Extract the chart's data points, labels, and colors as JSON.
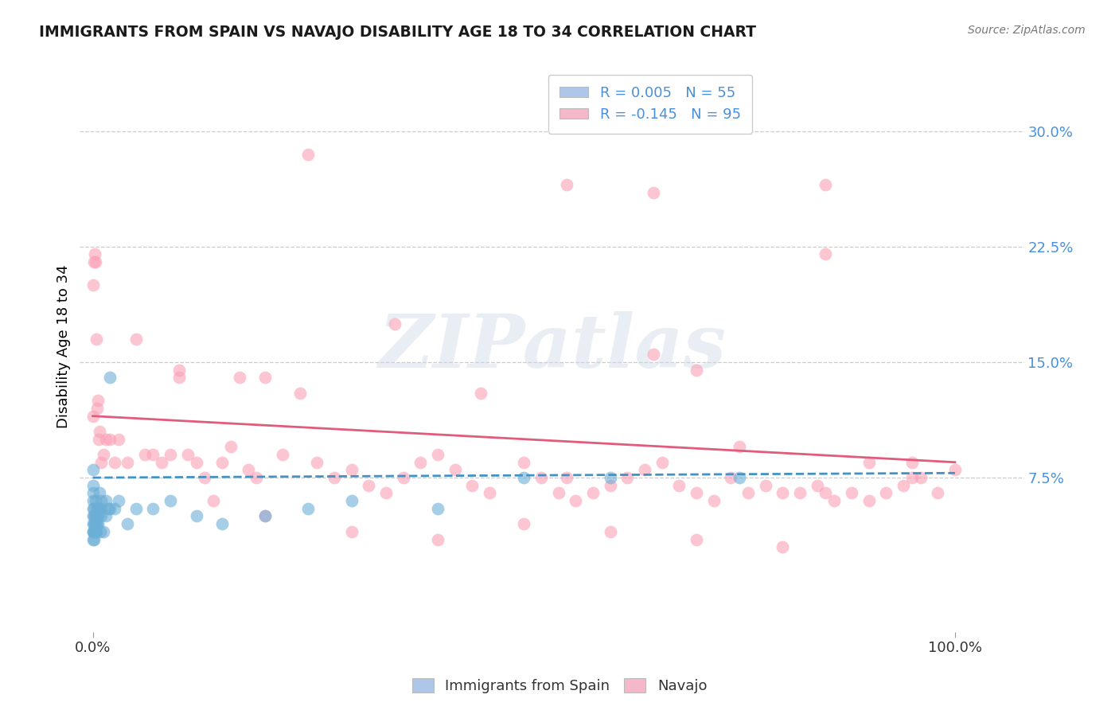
{
  "title": "IMMIGRANTS FROM SPAIN VS NAVAJO DISABILITY AGE 18 TO 34 CORRELATION CHART",
  "source": "Source: ZipAtlas.com",
  "ylabel": "Disability Age 18 to 34",
  "ytick_vals": [
    0.075,
    0.15,
    0.225,
    0.3
  ],
  "ytick_labels": [
    "7.5%",
    "15.0%",
    "22.5%",
    "30.0%"
  ],
  "xtick_vals": [
    0.0,
    1.0
  ],
  "xtick_labels": [
    "0.0%",
    "100.0%"
  ],
  "xlim": [
    -0.015,
    1.08
  ],
  "ylim": [
    -0.025,
    0.345
  ],
  "blue_scatter_x": [
    0.0,
    0.0,
    0.0,
    0.0,
    0.0,
    0.0,
    0.0,
    0.0,
    0.0,
    0.0,
    0.001,
    0.001,
    0.001,
    0.001,
    0.001,
    0.002,
    0.002,
    0.002,
    0.003,
    0.003,
    0.003,
    0.004,
    0.004,
    0.005,
    0.005,
    0.006,
    0.006,
    0.007,
    0.007,
    0.008,
    0.009,
    0.01,
    0.01,
    0.01,
    0.012,
    0.015,
    0.015,
    0.018,
    0.02,
    0.02,
    0.025,
    0.03,
    0.04,
    0.05,
    0.07,
    0.09,
    0.12,
    0.15,
    0.2,
    0.25,
    0.3,
    0.4,
    0.5,
    0.6,
    0.75
  ],
  "blue_scatter_y": [
    0.035,
    0.04,
    0.04,
    0.045,
    0.05,
    0.055,
    0.06,
    0.065,
    0.07,
    0.08,
    0.035,
    0.04,
    0.045,
    0.05,
    0.055,
    0.04,
    0.045,
    0.05,
    0.04,
    0.045,
    0.06,
    0.04,
    0.05,
    0.045,
    0.055,
    0.045,
    0.055,
    0.05,
    0.055,
    0.065,
    0.04,
    0.05,
    0.055,
    0.06,
    0.04,
    0.05,
    0.06,
    0.055,
    0.055,
    0.14,
    0.055,
    0.06,
    0.045,
    0.055,
    0.055,
    0.06,
    0.05,
    0.045,
    0.05,
    0.055,
    0.06,
    0.055,
    0.075,
    0.075,
    0.075
  ],
  "pink_scatter_x": [
    0.0,
    0.0,
    0.001,
    0.002,
    0.003,
    0.004,
    0.005,
    0.006,
    0.007,
    0.008,
    0.01,
    0.012,
    0.015,
    0.02,
    0.025,
    0.03,
    0.04,
    0.05,
    0.06,
    0.07,
    0.08,
    0.09,
    0.1,
    0.11,
    0.12,
    0.13,
    0.14,
    0.15,
    0.16,
    0.17,
    0.18,
    0.19,
    0.2,
    0.22,
    0.24,
    0.25,
    0.26,
    0.28,
    0.3,
    0.32,
    0.34,
    0.35,
    0.36,
    0.38,
    0.4,
    0.42,
    0.44,
    0.45,
    0.46,
    0.5,
    0.52,
    0.54,
    0.55,
    0.56,
    0.58,
    0.6,
    0.62,
    0.64,
    0.65,
    0.66,
    0.68,
    0.7,
    0.72,
    0.74,
    0.75,
    0.76,
    0.78,
    0.8,
    0.82,
    0.84,
    0.85,
    0.86,
    0.88,
    0.9,
    0.92,
    0.94,
    0.95,
    0.96,
    0.98,
    1.0,
    0.1,
    0.3,
    0.5,
    0.7,
    0.55,
    0.65,
    0.85,
    0.9,
    0.95,
    0.2,
    0.4,
    0.6,
    0.8,
    0.7,
    0.85
  ],
  "pink_scatter_y": [
    0.115,
    0.2,
    0.215,
    0.22,
    0.215,
    0.165,
    0.12,
    0.125,
    0.1,
    0.105,
    0.085,
    0.09,
    0.1,
    0.1,
    0.085,
    0.1,
    0.085,
    0.165,
    0.09,
    0.09,
    0.085,
    0.09,
    0.14,
    0.09,
    0.085,
    0.075,
    0.06,
    0.085,
    0.095,
    0.14,
    0.08,
    0.075,
    0.14,
    0.09,
    0.13,
    0.285,
    0.085,
    0.075,
    0.08,
    0.07,
    0.065,
    0.175,
    0.075,
    0.085,
    0.09,
    0.08,
    0.07,
    0.13,
    0.065,
    0.085,
    0.075,
    0.065,
    0.265,
    0.06,
    0.065,
    0.07,
    0.075,
    0.08,
    0.155,
    0.085,
    0.07,
    0.065,
    0.06,
    0.075,
    0.095,
    0.065,
    0.07,
    0.065,
    0.065,
    0.07,
    0.22,
    0.06,
    0.065,
    0.06,
    0.065,
    0.07,
    0.085,
    0.075,
    0.065,
    0.08,
    0.145,
    0.04,
    0.045,
    0.035,
    0.075,
    0.26,
    0.065,
    0.085,
    0.075,
    0.05,
    0.035,
    0.04,
    0.03,
    0.145,
    0.265
  ],
  "blue_color": "#6baed6",
  "pink_color": "#fa9fb5",
  "blue_line_color": "#4292c6",
  "pink_line_color": "#e05c7a",
  "blue_legend_color": "#aec6e8",
  "pink_legend_color": "#f4b8c8",
  "blue_line_y0": 0.075,
  "blue_line_y1": 0.078,
  "pink_line_y0": 0.115,
  "pink_line_y1": 0.085,
  "watermark_text": "ZIPatlas",
  "legend_label_blue": "R = 0.005   N = 55",
  "legend_label_pink": "R = -0.145   N = 95",
  "bottom_legend_blue": "Immigrants from Spain",
  "bottom_legend_pink": "Navajo",
  "background_color": "#ffffff",
  "grid_color": "#cccccc"
}
